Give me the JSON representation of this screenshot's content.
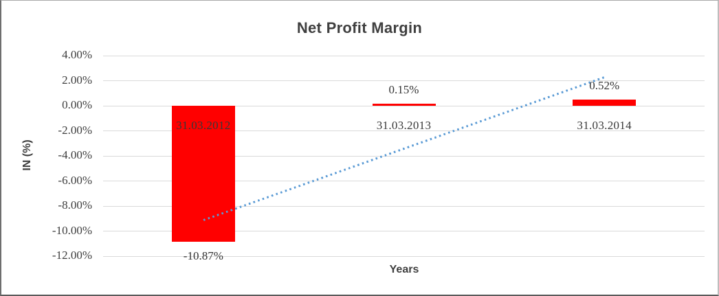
{
  "chart_data": {
    "type": "bar",
    "title": "Net Profit Margin",
    "xlabel": "Years",
    "ylabel": "IN (%)",
    "categories": [
      "31.03.2012",
      "31.03.2013",
      "31.03.2014"
    ],
    "values": [
      -10.87,
      0.15,
      0.52
    ],
    "value_labels": [
      "-10.87%",
      "0.15%",
      "0.52%"
    ],
    "unit": "percent",
    "ylim": [
      -12,
      4
    ],
    "y_ticks": [
      {
        "value": 4,
        "label": "4.00%"
      },
      {
        "value": 2,
        "label": "2.00%"
      },
      {
        "value": 0,
        "label": "0.00%"
      },
      {
        "value": -2,
        "label": "-2.00%"
      },
      {
        "value": -4,
        "label": "-4.00%"
      },
      {
        "value": -6,
        "label": "-6.00%"
      },
      {
        "value": -8,
        "label": "-8.00%"
      },
      {
        "value": -10,
        "label": "-10.00%"
      },
      {
        "value": -12,
        "label": "-12.00%"
      }
    ],
    "grid": true,
    "legend": "none",
    "bar_color": "#ff0000",
    "trendline": {
      "type": "linear",
      "style": "dotted",
      "color": "#5b9bd5",
      "start_value": -9.1,
      "end_value": 2.3
    },
    "colors": {
      "grid": "#d9d9d9",
      "axis_text": "#3d3d3d",
      "label_text": "#333333",
      "title_text": "#3f3f3f"
    }
  }
}
